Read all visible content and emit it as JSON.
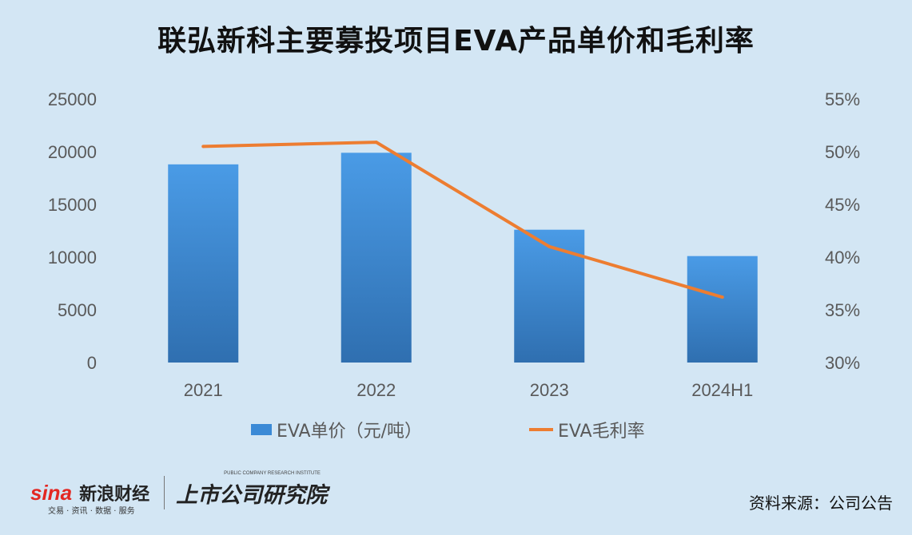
{
  "title": "联弘新科主要募投项目EVA产品单价和毛利率",
  "chart_data": {
    "type": "bar",
    "categories": [
      "2021",
      "2022",
      "2023",
      "2024H1"
    ],
    "series": [
      {
        "name": "EVA单价（元/吨）",
        "type": "bar",
        "axis": "left",
        "values": [
          18800,
          19900,
          12600,
          10100
        ],
        "color": "#3b8ad6"
      },
      {
        "name": "EVA毛利率",
        "type": "line",
        "axis": "right",
        "values": [
          50.5,
          50.9,
          41.0,
          36.2
        ],
        "color": "#ed7d31"
      }
    ],
    "y_left": {
      "ylim": [
        0,
        25000
      ],
      "ticks": [
        0,
        5000,
        10000,
        15000,
        20000,
        25000
      ],
      "tick_labels": [
        "0",
        "5000",
        "10000",
        "15000",
        "20000",
        "25000"
      ]
    },
    "y_right": {
      "ylim": [
        30,
        55
      ],
      "ticks": [
        30,
        35,
        40,
        45,
        50,
        55
      ],
      "tick_labels": [
        "30%",
        "35%",
        "40%",
        "45%",
        "50%",
        "55%"
      ]
    },
    "grid": false,
    "legend": "bottom"
  },
  "footer": {
    "sina_logo": "sina",
    "sina_name": "新浪财经",
    "sina_tagline": "交易 · 资讯 · 数据 · 服务",
    "institute_name": "上市公司研究院",
    "institute_tagline": "PUBLIC COMPANY RESEARCH INSTITUTE",
    "source": "资料来源：公司公告"
  }
}
